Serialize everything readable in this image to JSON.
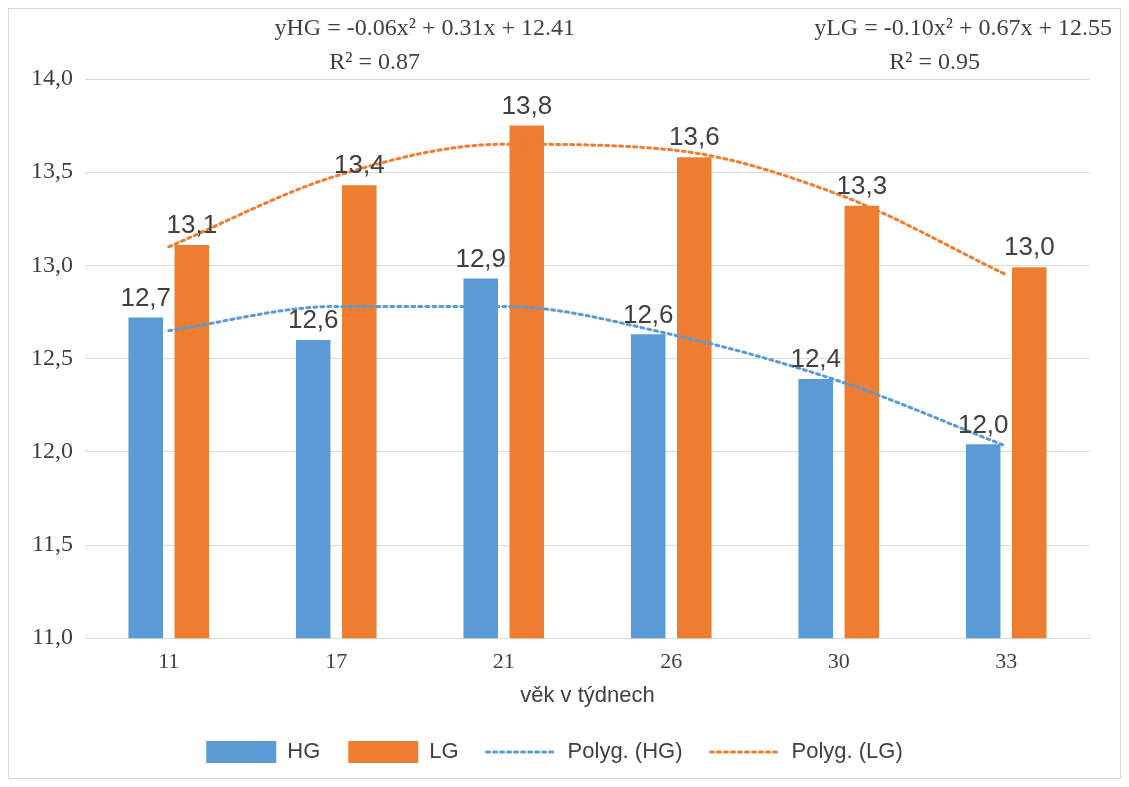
{
  "chart_data": {
    "type": "bar",
    "xlabel": "věk v týdnech",
    "categories": [
      "11",
      "17",
      "21",
      "26",
      "30",
      "33"
    ],
    "series": [
      {
        "name": "HG",
        "color": "#5b9bd5",
        "values": [
          12.72,
          12.6,
          12.93,
          12.63,
          12.39,
          12.04
        ],
        "value_labels": [
          "12,7",
          "12,6",
          "12,9",
          "12,6",
          "12,4",
          "12,0"
        ]
      },
      {
        "name": "LG",
        "color": "#ed7d31",
        "values": [
          13.11,
          13.43,
          13.75,
          13.58,
          13.32,
          12.99
        ],
        "value_labels": [
          "13,1",
          "13,4",
          "13,8",
          "13,6",
          "13,3",
          "13,0"
        ]
      },
      {
        "name": "Polyg. (HG)",
        "type": "line",
        "line_style": "dotted",
        "marker": "none",
        "color": "#5b9bd5",
        "values": [
          12.65,
          12.78,
          12.78,
          12.63,
          12.38,
          12.03
        ]
      },
      {
        "name": "Polyg. (LG)",
        "type": "line",
        "line_style": "dotted",
        "marker": "none",
        "color": "#ed7d31",
        "values": [
          13.1,
          13.48,
          13.65,
          13.62,
          13.38,
          12.95
        ]
      }
    ],
    "ylim": [
      11,
      14
    ],
    "yticks": [
      {
        "value": 11,
        "label": "11,0"
      },
      {
        "value": 11.5,
        "label": "11,5"
      },
      {
        "value": 12,
        "label": "12,0"
      },
      {
        "value": 12.5,
        "label": "12,5"
      },
      {
        "value": 13,
        "label": "13,0"
      },
      {
        "value": 13.5,
        "label": "13,5"
      },
      {
        "value": 14,
        "label": "14,0"
      }
    ],
    "grid": "y",
    "legend": "bottom",
    "annotations": [
      "yHG = -0.06x² + 0.31x + 12.41",
      "R² = 0.87",
      "yLG = -0.10x² + 0.67x + 12.55",
      "R² = 0.95"
    ]
  }
}
